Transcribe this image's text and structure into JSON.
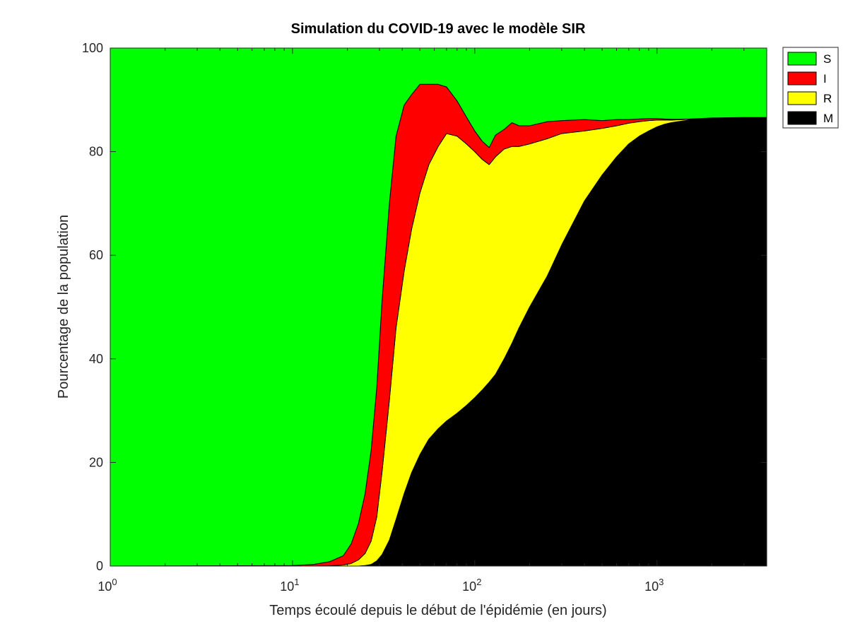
{
  "chart_data": {
    "type": "area",
    "stacked": true,
    "title": "Simulation du COVID-19 avec le modèle SIR",
    "xlabel": "Temps écoulé depuis le début de l'épidémie (en jours)",
    "ylabel": "Pourcentage de la population",
    "xscale": "log",
    "xlim": [
      1,
      4000
    ],
    "ylim": [
      0,
      100
    ],
    "x_ticks": [
      {
        "value": 1,
        "base": "10",
        "exp": "0"
      },
      {
        "value": 10,
        "base": "10",
        "exp": "1"
      },
      {
        "value": 100,
        "base": "10",
        "exp": "2"
      },
      {
        "value": 1000,
        "base": "10",
        "exp": "3"
      }
    ],
    "y_ticks": [
      0,
      20,
      40,
      60,
      80,
      100
    ],
    "grid": false,
    "legend_position": "outside-top-right",
    "x": [
      1,
      10,
      13,
      16,
      19,
      21,
      23,
      25,
      27,
      29,
      31,
      34,
      37,
      41,
      45,
      50,
      56,
      63,
      70,
      80,
      90,
      100,
      110,
      120,
      130,
      145,
      160,
      175,
      200,
      250,
      300,
      400,
      500,
      600,
      700,
      800,
      900,
      1000,
      1100,
      1200,
      1300,
      1500,
      1700,
      2000,
      2500,
      3000,
      3500,
      4000
    ],
    "series": [
      {
        "name": "M",
        "color": "#000000",
        "values": [
          0,
          0,
          0,
          0,
          0,
          0,
          0,
          0.1,
          0.3,
          1,
          2.2,
          5,
          9,
          14,
          18,
          21.5,
          24.5,
          26.5,
          28,
          29.5,
          31,
          32.5,
          34,
          35.5,
          37,
          40,
          43,
          46,
          50,
          56,
          62,
          70.5,
          75.5,
          79,
          81.5,
          83,
          84,
          84.8,
          85.3,
          85.6,
          85.8,
          86.1,
          86.3,
          86.45,
          86.55,
          86.6,
          86.6,
          86.6
        ]
      },
      {
        "name": "R",
        "color": "#ffff00",
        "values": [
          0,
          0,
          0,
          0.05,
          0.2,
          0.5,
          1.2,
          2.3,
          4.5,
          8.5,
          16,
          27,
          37,
          43,
          47,
          50.5,
          53,
          54.5,
          55.5,
          53.5,
          50.5,
          47.5,
          44.5,
          42,
          42,
          40.5,
          38,
          35,
          31.5,
          26.5,
          21.5,
          13.5,
          9,
          6,
          4,
          2.8,
          2,
          1.3,
          0.8,
          0.5,
          0.35,
          0.15,
          0.08,
          0.05,
          0.02,
          0,
          0,
          0
        ]
      },
      {
        "name": "I",
        "color": "#ff0000",
        "values": [
          0,
          0.1,
          0.3,
          0.8,
          1.8,
          3.8,
          7,
          11.5,
          17.5,
          25,
          33,
          38,
          37,
          32,
          26,
          21,
          15.5,
          12,
          9,
          6.8,
          5.2,
          4,
          3.5,
          3.3,
          4.2,
          3.8,
          4.6,
          4,
          3.5,
          3.3,
          2.5,
          2.2,
          1.5,
          1.2,
          0.7,
          0.5,
          0.4,
          0.3,
          0.2,
          0.15,
          0.1,
          0.05,
          0.02,
          0.01,
          0,
          0,
          0,
          0
        ]
      },
      {
        "name": "S",
        "color": "#00ff00",
        "values": [
          100,
          99.9,
          99.7,
          99.15,
          98,
          95.7,
          91.8,
          86.1,
          77.7,
          65.5,
          48.8,
          30,
          17,
          11,
          9,
          7,
          7,
          7,
          7.5,
          10.2,
          13.3,
          16,
          18,
          19.2,
          16.8,
          15.7,
          14.4,
          15,
          15,
          14.2,
          14,
          13.8,
          14,
          13.8,
          13.8,
          13.7,
          13.6,
          13.6,
          13.7,
          13.75,
          13.75,
          13.7,
          13.6,
          13.49,
          13.43,
          13.4,
          13.4,
          13.4
        ]
      }
    ]
  },
  "legend": {
    "items": [
      {
        "label": "S",
        "color": "#00ff00"
      },
      {
        "label": "I",
        "color": "#ff0000"
      },
      {
        "label": "R",
        "color": "#ffff00"
      },
      {
        "label": "M",
        "color": "#000000"
      }
    ]
  }
}
